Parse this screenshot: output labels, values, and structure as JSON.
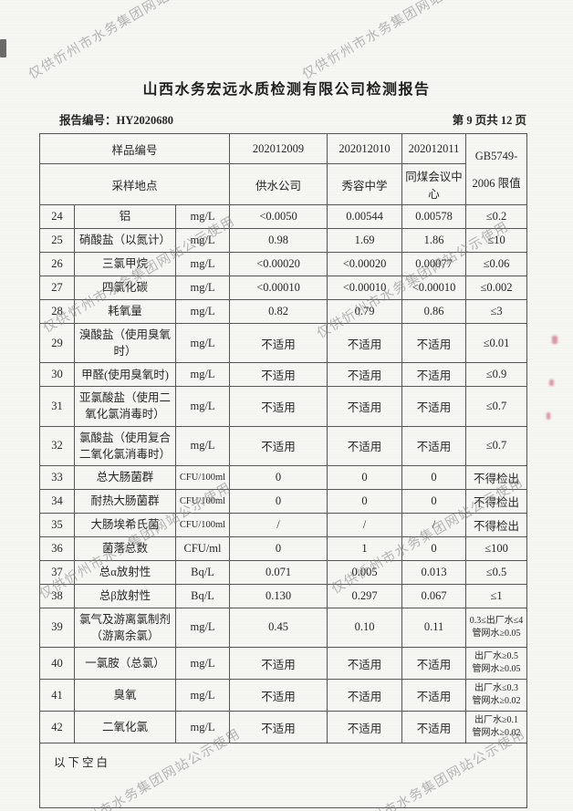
{
  "colors": {
    "paper": "#f6f6f3",
    "table_border": "#565656",
    "text": "#262626",
    "watermark": "#808080",
    "stamp_mark": "#c5465c"
  },
  "watermark": {
    "text": "仅供忻州市水务集团网站公示使用"
  },
  "header": {
    "title": "山西水务宏远水质检测有限公司检测报告",
    "report_no": "报告编号：HY2020680",
    "page_info": "第 9 页共 12 页"
  },
  "table": {
    "sample_id_label": "样品编号",
    "sample_ids": [
      "202012009",
      "202012010",
      "202012011"
    ],
    "location_label": "采样地点",
    "locations": [
      "供水公司",
      "秀容中学",
      "同煤会议中心"
    ],
    "limit_header": "GB5749-\n2006 限值",
    "rows": [
      {
        "no": "24",
        "name": "铝",
        "unit": "mg/L",
        "values": [
          "<0.0050",
          "0.00544",
          "0.00578"
        ],
        "limit": "≤0.2"
      },
      {
        "no": "25",
        "name": "硝酸盐（以氮计）",
        "unit": "mg/L",
        "values": [
          "0.98",
          "1.69",
          "1.86"
        ],
        "limit": "≤10"
      },
      {
        "no": "26",
        "name": "三氯甲烷",
        "unit": "mg/L",
        "values": [
          "<0.00020",
          "<0.00020",
          "0.00077"
        ],
        "limit": "≤0.06"
      },
      {
        "no": "27",
        "name": "四氯化碳",
        "unit": "mg/L",
        "values": [
          "<0.00010",
          "<0.00010",
          "<0.00010"
        ],
        "limit": "≤0.002"
      },
      {
        "no": "28",
        "name": "耗氧量",
        "unit": "mg/L",
        "values": [
          "0.82",
          "0.79",
          "0.86"
        ],
        "limit": "≤3"
      },
      {
        "no": "29",
        "name": "溴酸盐（使用臭氧时）",
        "unit": "mg/L",
        "values": [
          "不适用",
          "不适用",
          "不适用"
        ],
        "limit": "≤0.01"
      },
      {
        "no": "30",
        "name": "甲醛(使用臭氧时)",
        "unit": "mg/L",
        "values": [
          "不适用",
          "不适用",
          "不适用"
        ],
        "limit": "≤0.9"
      },
      {
        "no": "31",
        "name": "亚氯酸盐（使用二氧化氯消毒时）",
        "unit": "mg/L",
        "values": [
          "不适用",
          "不适用",
          "不适用"
        ],
        "limit": "≤0.7"
      },
      {
        "no": "32",
        "name": "氯酸盐（使用复合二氧化氯消毒时）",
        "unit": "mg/L",
        "values": [
          "不适用",
          "不适用",
          "不适用"
        ],
        "limit": "≤0.7"
      },
      {
        "no": "33",
        "name": "总大肠菌群",
        "unit": "CFU/100ml",
        "values": [
          "0",
          "0",
          "0"
        ],
        "limit": "不得检出"
      },
      {
        "no": "34",
        "name": "耐热大肠菌群",
        "unit": "CFU/100ml",
        "values": [
          "0",
          "0",
          "0"
        ],
        "limit": "不得检出"
      },
      {
        "no": "35",
        "name": "大肠埃希氏菌",
        "unit": "CFU/100ml",
        "values": [
          "/",
          "/",
          "/"
        ],
        "limit": "不得检出"
      },
      {
        "no": "36",
        "name": "菌落总数",
        "unit": "CFU/ml",
        "values": [
          "0",
          "1",
          "0"
        ],
        "limit": "≤100"
      },
      {
        "no": "37",
        "name": "总α放射性",
        "unit": "Bq/L",
        "values": [
          "0.071",
          "0.005",
          "0.013"
        ],
        "limit": "≤0.5"
      },
      {
        "no": "38",
        "name": "总β放射性",
        "unit": "Bq/L",
        "values": [
          "0.130",
          "0.297",
          "0.067"
        ],
        "limit": "≤1"
      },
      {
        "no": "39",
        "name": "氯气及游离氯制剂（游离余氯）",
        "unit": "mg/L",
        "values": [
          "0.45",
          "0.10",
          "0.11"
        ],
        "limit": "0.3≤出厂水≤4\n管网水≥0.05"
      },
      {
        "no": "40",
        "name": "一氯胺（总氯）",
        "unit": "mg/L",
        "values": [
          "不适用",
          "不适用",
          "不适用"
        ],
        "limit": "出厂水≥0.5\n管网水≥0.05"
      },
      {
        "no": "41",
        "name": "臭氧",
        "unit": "mg/L",
        "values": [
          "不适用",
          "不适用",
          "不适用"
        ],
        "limit": "出厂水≤0.3\n管网水≥0.02"
      },
      {
        "no": "42",
        "name": "二氧化氯",
        "unit": "mg/L",
        "values": [
          "不适用",
          "不适用",
          "不适用"
        ],
        "limit": "出厂水≥0.1\n管网水≥0.02"
      }
    ]
  },
  "footer": {
    "blank_note": "以下空白"
  }
}
